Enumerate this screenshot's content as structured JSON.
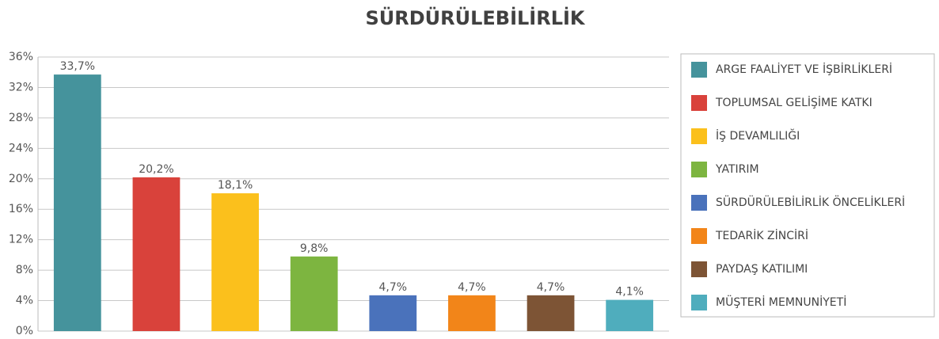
{
  "chart_data": {
    "type": "bar",
    "title": "SÜRDÜRÜLEBİLİRLİK",
    "categories": [
      "ARGE FAALİYET VE İŞBİRLİKLERİ",
      "TOPLUMSAL GELİŞİME KATKI",
      "İŞ DEVAMLILIĞI",
      "YATIRIM",
      "SÜRDÜRÜLEBİLİRLİK ÖNCELİKLERİ",
      "TEDARİK ZİNCİRİ",
      "PAYDAŞ KATILIMI",
      "MÜŞTERİ MEMNUNİYETİ"
    ],
    "values": [
      33.7,
      20.2,
      18.1,
      9.8,
      4.7,
      4.7,
      4.7,
      4.1
    ],
    "value_labels": [
      "33,7%",
      "20,2%",
      "18,1%",
      "9,8%",
      "4,7%",
      "4,7%",
      "4,7%",
      "4,1%"
    ],
    "colors": [
      "#45939c",
      "#d9423b",
      "#fbc01c",
      "#7db540",
      "#4a72bb",
      "#f28519",
      "#7d5435",
      "#4fadbd"
    ],
    "ylim": [
      0,
      36
    ],
    "yticks": [
      {
        "value": 0,
        "label": "0%"
      },
      {
        "value": 4,
        "label": "4%"
      },
      {
        "value": 8,
        "label": "8%"
      },
      {
        "value": 12,
        "label": "12%"
      },
      {
        "value": 16,
        "label": "16%"
      },
      {
        "value": 20,
        "label": "20%"
      },
      {
        "value": 24,
        "label": "24%"
      },
      {
        "value": 28,
        "label": "28%"
      },
      {
        "value": 32,
        "label": "32%"
      },
      {
        "value": 36,
        "label": "36%"
      }
    ],
    "grid": true,
    "legend": "right"
  }
}
